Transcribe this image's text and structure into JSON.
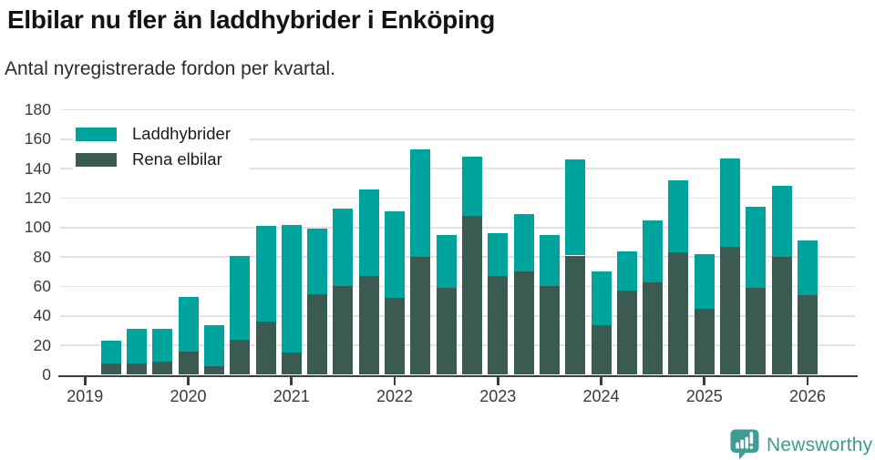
{
  "header": {
    "title": "Elbilar nu fler än laddhybrider i Enköping",
    "subtitle": "Antal nyregistrerade fordon per kvartal."
  },
  "legend": [
    {
      "label": "Laddhybrider",
      "color": "#00a49c"
    },
    {
      "label": "Rena elbilar",
      "color": "#3a5a52"
    }
  ],
  "chart_data": {
    "type": "bar",
    "stacked": true,
    "title": "Elbilar nu fler än laddhybrider i Enköping",
    "subtitle": "Antal nyregistrerade fordon per kvartal.",
    "ylim": [
      0,
      180
    ],
    "y_ticks": [
      0,
      20,
      40,
      60,
      80,
      100,
      120,
      140,
      160,
      180
    ],
    "x_tick_labels": [
      "2019",
      "2020",
      "2021",
      "2022",
      "2023",
      "2024",
      "2025",
      "2026"
    ],
    "grid": "horizontal",
    "legend_position": "top-left-inside",
    "categories": [
      "2019 Q2",
      "2019 Q3",
      "2019 Q4",
      "2020 Q1",
      "2020 Q2",
      "2020 Q3",
      "2020 Q4",
      "2021 Q1",
      "2021 Q2",
      "2021 Q3",
      "2021 Q4",
      "2022 Q1",
      "2022 Q2",
      "2022 Q3",
      "2022 Q4",
      "2023 Q1",
      "2023 Q2",
      "2023 Q3",
      "2023 Q4",
      "2024 Q1",
      "2024 Q2",
      "2024 Q3",
      "2024 Q4",
      "2025 Q1",
      "2025 Q2",
      "2025 Q3",
      "2025 Q4",
      "2026 Q1"
    ],
    "series": [
      {
        "name": "Rena elbilar",
        "color": "#3a5a52",
        "values": [
          8,
          8,
          9,
          16,
          6,
          24,
          36,
          15,
          55,
          60,
          67,
          52,
          80,
          59,
          108,
          67,
          70,
          60,
          81,
          34,
          57,
          63,
          83,
          45,
          87,
          59,
          80,
          54
        ]
      },
      {
        "name": "Laddhybrider",
        "color": "#00a49c",
        "values": [
          15,
          23,
          22,
          37,
          28,
          57,
          65,
          87,
          44,
          53,
          59,
          59,
          73,
          36,
          40,
          29,
          39,
          35,
          65,
          36,
          27,
          42,
          49,
          37,
          60,
          55,
          48,
          37
        ]
      }
    ]
  },
  "footer": {
    "brand": "Newsworthy",
    "brand_color": "#3f9b93",
    "logo_icon": "speech-bubble-bar-chart"
  }
}
